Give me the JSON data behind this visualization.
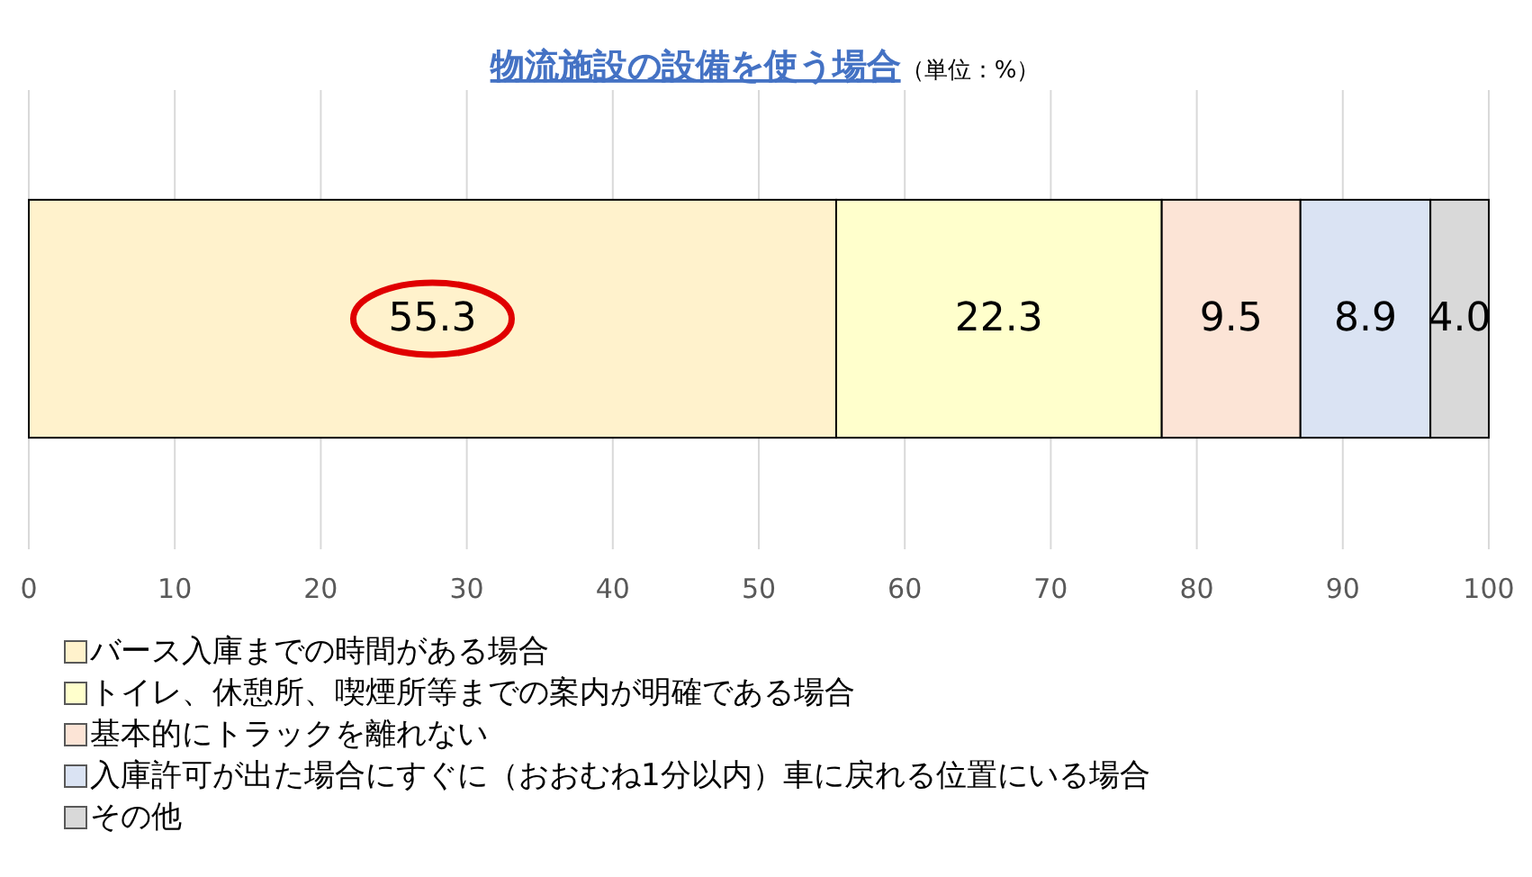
{
  "chart_data": {
    "type": "bar",
    "orientation": "horizontal",
    "stacked": true,
    "title": "物流施設の設備を使う場合",
    "subtitle": "（単位：%）",
    "categories": [
      null
    ],
    "series": [
      {
        "name": "バース入庫までの時間がある場合",
        "color": "#fff2cc",
        "values": [
          55.3
        ],
        "value_labels": [
          "55.3"
        ]
      },
      {
        "name": "トイレ、休憩所、喫煙所等までの案内が明確である場合",
        "color": "#ffffcc",
        "values": [
          22.3
        ],
        "value_labels": [
          "22.3"
        ]
      },
      {
        "name": "基本的にトラックを離れない",
        "color": "#fce4d6",
        "values": [
          9.5
        ],
        "value_labels": [
          "9.5"
        ]
      },
      {
        "name": "入庫許可が出た場合にすぐに（おおむね1分以内）車に戻れる位置にいる場合",
        "color": "#dae3f3",
        "values": [
          8.9
        ],
        "value_labels": [
          "8.9"
        ]
      },
      {
        "name": "その他",
        "color": "#d9d9d9",
        "values": [
          4.0
        ],
        "value_labels": [
          "4.0"
        ]
      }
    ],
    "xlim": [
      0,
      100
    ],
    "xticks": [
      0,
      10,
      20,
      30,
      40,
      50,
      60,
      70,
      80,
      90,
      100
    ],
    "grid": "x",
    "legend": "bottom"
  }
}
